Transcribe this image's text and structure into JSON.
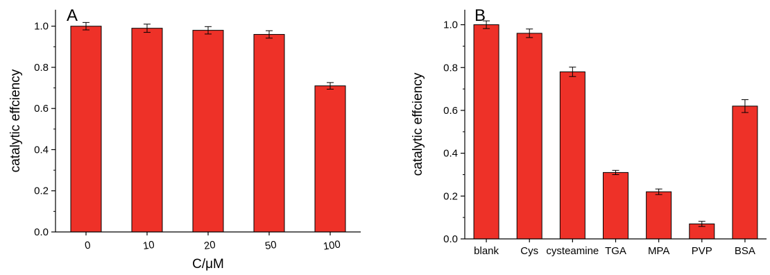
{
  "chart_data": [
    {
      "type": "bar",
      "panel_label": "A",
      "categories": [
        "0",
        "10",
        "20",
        "50",
        "100"
      ],
      "values": [
        1.0,
        0.99,
        0.98,
        0.96,
        0.71
      ],
      "errors": [
        0.018,
        0.02,
        0.018,
        0.018,
        0.016
      ],
      "xlabel": "C/μM",
      "ylabel": "catalytic effciency",
      "ylim": [
        0.0,
        1.08
      ],
      "yticks": [
        "0.0",
        "0.2",
        "0.4",
        "0.6",
        "0.8",
        "1.0"
      ],
      "bar_color": "#ee3128",
      "grid": false
    },
    {
      "type": "bar",
      "panel_label": "B",
      "categories": [
        "blank",
        "Cys",
        "cysteamine",
        "TGA",
        "MPA",
        "PVP",
        "BSA"
      ],
      "values": [
        1.0,
        0.96,
        0.78,
        0.31,
        0.22,
        0.07,
        0.62
      ],
      "errors": [
        0.018,
        0.02,
        0.022,
        0.01,
        0.013,
        0.012,
        0.03
      ],
      "xlabel": "",
      "ylabel": "catalytic effciency",
      "ylim": [
        0.0,
        1.07
      ],
      "yticks": [
        "0.0",
        "0.2",
        "0.4",
        "0.6",
        "0.8",
        "1.0"
      ],
      "bar_color": "#ee3128",
      "grid": false
    }
  ]
}
